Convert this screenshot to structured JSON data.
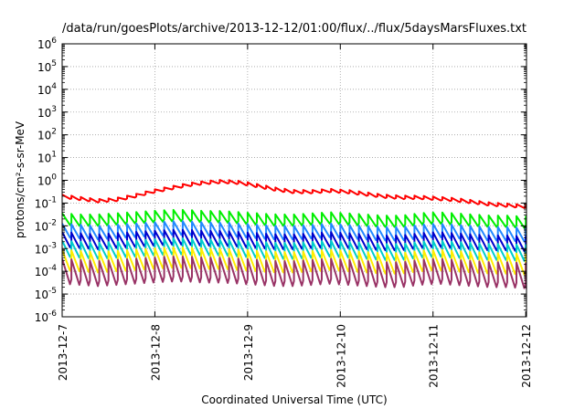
{
  "chart_data": {
    "type": "line",
    "title": "/data/run/goesPlots/archive/2013-12-12/01:00/flux/../flux/5daysMarsFluxes.txt",
    "xlabel": "Coordinated Universal Time (UTC)",
    "ylabel": "protons/cm²-s-sr-MeV",
    "yscale": "log",
    "ylim": [
      1e-06,
      1000000.0
    ],
    "xlim": [
      "2013-12-07",
      "2013-12-12 00:12"
    ],
    "grid": true,
    "legend": "none",
    "x_ticks": [
      "2013-12-7",
      "2013-12-8",
      "2013-12-9",
      "2013-12-10",
      "2013-12-11",
      "2013-12-12"
    ],
    "y_ticks": [
      {
        "base": "10",
        "exp": "-6"
      },
      {
        "base": "10",
        "exp": "-5"
      },
      {
        "base": "10",
        "exp": "-4"
      },
      {
        "base": "10",
        "exp": "-3"
      },
      {
        "base": "10",
        "exp": "-2"
      },
      {
        "base": "10",
        "exp": "-1"
      },
      {
        "base": "10",
        "exp": "0"
      },
      {
        "base": "10",
        "exp": "1"
      },
      {
        "base": "10",
        "exp": "2"
      },
      {
        "base": "10",
        "exp": "3"
      },
      {
        "base": "10",
        "exp": "4"
      },
      {
        "base": "10",
        "exp": "5"
      },
      {
        "base": "10",
        "exp": "6"
      }
    ],
    "series_style": "sawtooth, period ~0.1 day",
    "series": [
      {
        "color": "#ff0000",
        "log10_values": [
          -0.7,
          -0.8,
          -0.9,
          -0.85,
          -0.7,
          -0.5,
          -0.35,
          -0.2,
          -0.1,
          -0.05,
          -0.1,
          -0.25,
          -0.4,
          -0.5,
          -0.5,
          -0.45,
          -0.5,
          -0.6,
          -0.7,
          -0.75,
          -0.75,
          -0.8,
          -0.85,
          -0.95,
          -1.05,
          -1.1,
          -1.15
        ],
        "sawtooth_amp": 0.15
      },
      {
        "color": "#00ee00",
        "log10_values": [
          -1.7,
          -1.75,
          -1.75,
          -1.7,
          -1.65,
          -1.6,
          -1.55,
          -1.55,
          -1.6,
          -1.6,
          -1.65,
          -1.7,
          -1.75,
          -1.75,
          -1.7,
          -1.65,
          -1.7,
          -1.75,
          -1.8,
          -1.8,
          -1.7,
          -1.65,
          -1.7,
          -1.75,
          -1.8,
          -1.8,
          -1.85
        ],
        "sawtooth_amp": 0.5
      },
      {
        "color": "#2288ff",
        "log10_values": [
          -2.2,
          -2.25,
          -2.3,
          -2.25,
          -2.2,
          -2.15,
          -2.1,
          -2.1,
          -2.15,
          -2.15,
          -2.2,
          -2.25,
          -2.3,
          -2.3,
          -2.25,
          -2.2,
          -2.25,
          -2.3,
          -2.35,
          -2.35,
          -2.25,
          -2.2,
          -2.25,
          -2.3,
          -2.35,
          -2.35,
          -2.4
        ],
        "sawtooth_amp": 0.6
      },
      {
        "color": "#0000cc",
        "log10_values": [
          -2.6,
          -2.65,
          -2.7,
          -2.65,
          -2.6,
          -2.55,
          -2.5,
          -2.5,
          -2.55,
          -2.55,
          -2.6,
          -2.65,
          -2.7,
          -2.7,
          -2.65,
          -2.6,
          -2.65,
          -2.7,
          -2.75,
          -2.75,
          -2.65,
          -2.6,
          -2.65,
          -2.7,
          -2.75,
          -2.75,
          -2.8
        ],
        "sawtooth_amp": 0.65
      },
      {
        "color": "#00cccc",
        "log10_values": [
          -3.0,
          -3.05,
          -3.1,
          -3.05,
          -3.0,
          -2.95,
          -2.9,
          -2.9,
          -2.95,
          -2.95,
          -3.0,
          -3.05,
          -3.1,
          -3.1,
          -3.05,
          -3.0,
          -3.05,
          -3.1,
          -3.15,
          -3.15,
          -3.05,
          -3.0,
          -3.05,
          -3.1,
          -3.15,
          -3.15,
          -3.2
        ],
        "sawtooth_amp": 0.7
      },
      {
        "color": "#ffee00",
        "log10_values": [
          -3.5,
          -3.55,
          -3.6,
          -3.55,
          -3.5,
          -3.45,
          -3.4,
          -3.4,
          -3.45,
          -3.45,
          -3.5,
          -3.55,
          -3.6,
          -3.6,
          -3.55,
          -3.5,
          -3.55,
          -3.6,
          -3.65,
          -3.65,
          -3.55,
          -3.5,
          -3.55,
          -3.6,
          -3.65,
          -3.65,
          -3.7
        ],
        "sawtooth_amp": 0.9
      },
      {
        "color": "#993366",
        "log10_values": [
          -4.0,
          -4.05,
          -4.1,
          -4.05,
          -4.0,
          -3.95,
          -3.9,
          -3.9,
          -3.95,
          -3.95,
          -4.0,
          -4.05,
          -4.1,
          -4.1,
          -4.05,
          -4.0,
          -4.05,
          -4.1,
          -4.15,
          -4.15,
          -4.05,
          -4.0,
          -4.05,
          -4.1,
          -4.15,
          -4.15,
          -4.2
        ],
        "sawtooth_amp": 1.1
      }
    ]
  }
}
